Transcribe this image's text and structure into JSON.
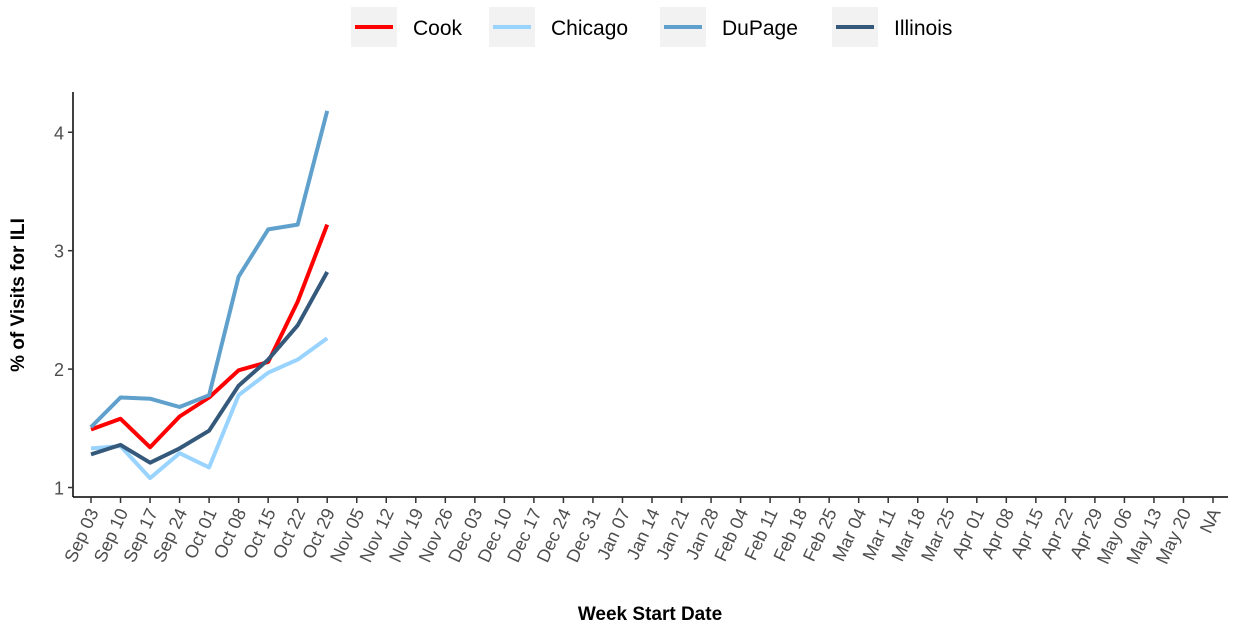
{
  "chart_data": {
    "type": "line",
    "x_label": "Week Start Date",
    "y_label": "% of Visits for ILI",
    "categories": [
      "Sep 03",
      "Sep 10",
      "Sep 17",
      "Sep 24",
      "Oct 01",
      "Oct 08",
      "Oct 15",
      "Oct 22",
      "Oct 29",
      "Nov 05",
      "Nov 12",
      "Nov 19",
      "Nov 26",
      "Dec 03",
      "Dec 10",
      "Dec 17",
      "Dec 24",
      "Dec 31",
      "Jan 07",
      "Jan 14",
      "Jan 21",
      "Jan 28",
      "Feb 04",
      "Feb 11",
      "Feb 18",
      "Feb 25",
      "Mar 04",
      "Mar 11",
      "Mar 18",
      "Mar 25",
      "Apr 01",
      "Apr 08",
      "Apr 15",
      "Apr 22",
      "Apr 29",
      "May 06",
      "May 13",
      "May 20",
      "NA"
    ],
    "series": [
      {
        "name": "Cook",
        "color": "#ff0000",
        "values": [
          1.49,
          1.58,
          1.34,
          1.6,
          1.76,
          1.99,
          2.06,
          2.57,
          3.22,
          null,
          null,
          null,
          null,
          null,
          null,
          null,
          null,
          null,
          null,
          null,
          null,
          null,
          null,
          null,
          null,
          null,
          null,
          null,
          null,
          null,
          null,
          null,
          null,
          null,
          null,
          null,
          null,
          null,
          null
        ]
      },
      {
        "name": "Chicago",
        "color": "#99d3ff",
        "values": [
          1.33,
          1.35,
          1.08,
          1.29,
          1.17,
          1.78,
          1.97,
          2.08,
          2.26,
          null,
          null,
          null,
          null,
          null,
          null,
          null,
          null,
          null,
          null,
          null,
          null,
          null,
          null,
          null,
          null,
          null,
          null,
          null,
          null,
          null,
          null,
          null,
          null,
          null,
          null,
          null,
          null,
          null,
          null
        ]
      },
      {
        "name": "DuPage",
        "color": "#5fa0cc",
        "values": [
          1.51,
          1.76,
          1.75,
          1.68,
          1.78,
          2.78,
          3.18,
          3.22,
          4.18,
          null,
          null,
          null,
          null,
          null,
          null,
          null,
          null,
          null,
          null,
          null,
          null,
          null,
          null,
          null,
          null,
          null,
          null,
          null,
          null,
          null,
          null,
          null,
          null,
          null,
          null,
          null,
          null,
          null,
          null
        ]
      },
      {
        "name": "Illinois",
        "color": "#34597a",
        "values": [
          1.28,
          1.36,
          1.21,
          1.33,
          1.48,
          1.86,
          2.08,
          2.37,
          2.82,
          null,
          null,
          null,
          null,
          null,
          null,
          null,
          null,
          null,
          null,
          null,
          null,
          null,
          null,
          null,
          null,
          null,
          null,
          null,
          null,
          null,
          null,
          null,
          null,
          null,
          null,
          null,
          null,
          null,
          null
        ]
      }
    ],
    "ylim": [
      0.92,
      4.34
    ],
    "yticks": [
      1,
      2,
      3,
      4
    ],
    "legend": "top"
  }
}
